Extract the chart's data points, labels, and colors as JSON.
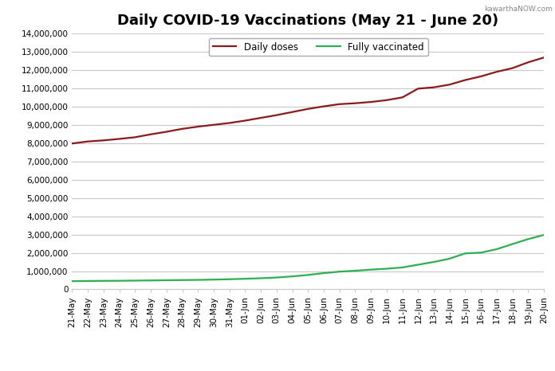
{
  "title": "Daily COVID-19 Vaccinations (May 21 - June 20)",
  "legend_labels": [
    "Daily doses",
    "Fully vaccinated"
  ],
  "line_colors": [
    "#8B1A1A",
    "#2DB050"
  ],
  "x_labels": [
    "21-May",
    "22-May",
    "23-May",
    "24-May",
    "25-May",
    "26-May",
    "27-May",
    "28-May",
    "29-May",
    "30-May",
    "31-May",
    "01-Jun",
    "02-Jun",
    "03-Jun",
    "04-Jun",
    "05-Jun",
    "06-Jun",
    "07-Jun",
    "08-Jun",
    "09-Jun",
    "10-Jun",
    "11-Jun",
    "12-Jun",
    "13-Jun",
    "14-Jun",
    "15-Jun",
    "16-Jun",
    "17-Jun",
    "18-Jun",
    "19-Jun",
    "20-Jun"
  ],
  "daily_doses": [
    7980000,
    8090000,
    8150000,
    8230000,
    8320000,
    8480000,
    8620000,
    8780000,
    8900000,
    9000000,
    9100000,
    9230000,
    9380000,
    9530000,
    9700000,
    9870000,
    10010000,
    10130000,
    10180000,
    10250000,
    10350000,
    10500000,
    10980000,
    11050000,
    11200000,
    11450000,
    11650000,
    11900000,
    12100000,
    12420000,
    12680000
  ],
  "fully_vaccinated": [
    450000,
    460000,
    465000,
    470000,
    480000,
    490000,
    500000,
    510000,
    520000,
    535000,
    555000,
    580000,
    610000,
    650000,
    710000,
    790000,
    890000,
    970000,
    1020000,
    1080000,
    1130000,
    1200000,
    1350000,
    1500000,
    1680000,
    1970000,
    2010000,
    2200000,
    2480000,
    2750000,
    2980000
  ],
  "ylim": [
    0,
    14000000
  ],
  "yticks": [
    0,
    1000000,
    2000000,
    3000000,
    4000000,
    5000000,
    6000000,
    7000000,
    8000000,
    9000000,
    10000000,
    11000000,
    12000000,
    13000000,
    14000000
  ],
  "background_color": "#FFFFFF",
  "plot_background_color": "#FFFFFF",
  "grid_color": "#C8C8C8",
  "title_fontsize": 13,
  "tick_fontsize": 7.5,
  "legend_fontsize": 8.5,
  "watermark": "kawarthaNOW.com",
  "line_width": 1.6
}
